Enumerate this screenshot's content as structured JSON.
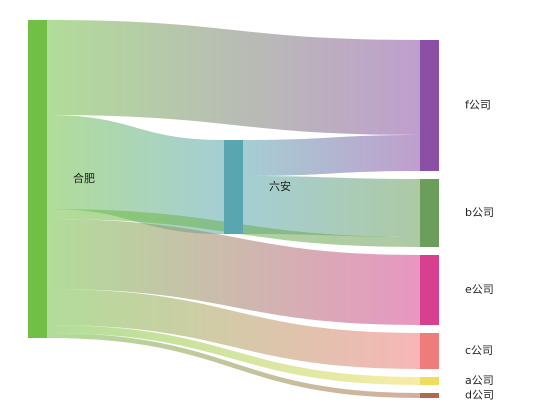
{
  "chart_data": {
    "type": "sankey",
    "nodes": [
      {
        "name": "合肥",
        "color": "#71c045",
        "column": 0
      },
      {
        "name": "六安",
        "color": "#5aa6b0",
        "column": 1
      },
      {
        "name": "f公司",
        "color": "#8b4fa5",
        "column": 2
      },
      {
        "name": "b公司",
        "color": "#6a9e5a",
        "column": 2
      },
      {
        "name": "e公司",
        "color": "#d6408f",
        "column": 2
      },
      {
        "name": "c公司",
        "color": "#f07b7b",
        "column": 2
      },
      {
        "name": "a公司",
        "color": "#efde5e",
        "column": 2
      },
      {
        "name": "d公司",
        "color": "#b06a50",
        "column": 2
      }
    ],
    "links": [
      {
        "source": 0,
        "target": 2,
        "value": 95
      },
      {
        "source": 0,
        "target": 1,
        "value": 94
      },
      {
        "source": 1,
        "target": 2,
        "value": 36
      },
      {
        "source": 1,
        "target": 3,
        "value": 58
      },
      {
        "source": 0,
        "target": 3,
        "value": 10
      },
      {
        "source": 0,
        "target": 4,
        "value": 70
      },
      {
        "source": 0,
        "target": 5,
        "value": 36
      },
      {
        "source": 0,
        "target": 6,
        "value": 8
      },
      {
        "source": 0,
        "target": 7,
        "value": 5
      }
    ]
  }
}
